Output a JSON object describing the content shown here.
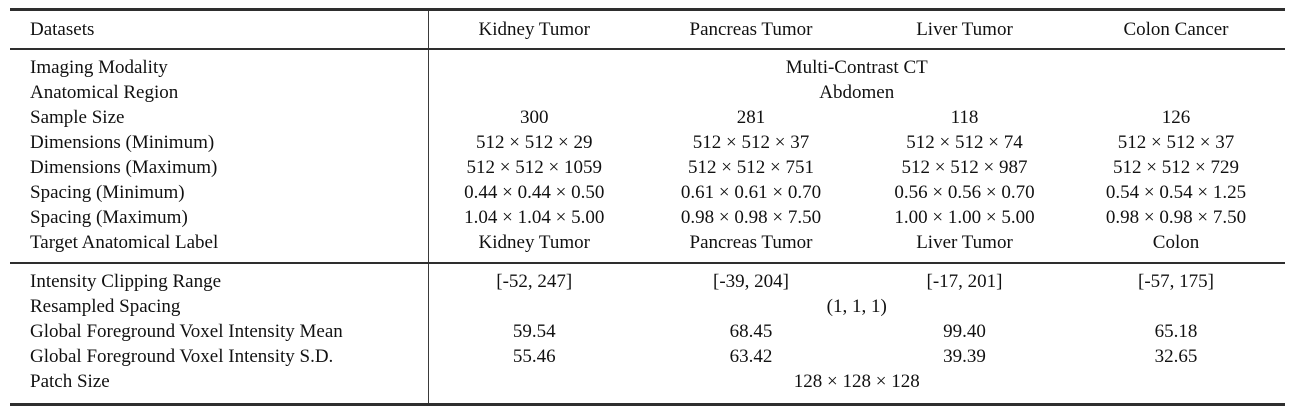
{
  "table": {
    "header": {
      "label": "Datasets",
      "columns": [
        "Kidney Tumor",
        "Pancreas Tumor",
        "Liver Tumor",
        "Colon Cancer"
      ]
    },
    "sections": [
      {
        "rows": [
          {
            "label": "Imaging Modality",
            "span": "Multi-Contrast CT"
          },
          {
            "label": "Anatomical Region",
            "span": "Abdomen"
          },
          {
            "label": "Sample Size",
            "values": [
              "300",
              "281",
              "118",
              "126"
            ]
          },
          {
            "label": "Dimensions (Minimum)",
            "values": [
              "512 × 512 × 29",
              "512 × 512 × 37",
              "512 × 512 × 74",
              "512 × 512 × 37"
            ]
          },
          {
            "label": "Dimensions (Maximum)",
            "values": [
              "512 × 512 × 1059",
              "512 × 512 × 751",
              "512 × 512 × 987",
              "512 × 512 × 729"
            ]
          },
          {
            "label": "Spacing (Minimum)",
            "values": [
              "0.44 × 0.44 × 0.50",
              "0.61 × 0.61 × 0.70",
              "0.56 × 0.56 × 0.70",
              "0.54 × 0.54 × 1.25"
            ]
          },
          {
            "label": "Spacing (Maximum)",
            "values": [
              "1.04 × 1.04 × 5.00",
              "0.98 × 0.98 × 7.50",
              "1.00 × 1.00 × 5.00",
              "0.98 × 0.98 × 7.50"
            ]
          },
          {
            "label": "Target Anatomical Label",
            "values": [
              "Kidney Tumor",
              "Pancreas Tumor",
              "Liver Tumor",
              "Colon"
            ]
          }
        ]
      },
      {
        "rows": [
          {
            "label": "Intensity Clipping Range",
            "values": [
              "[-52, 247]",
              "[-39, 204]",
              "[-17, 201]",
              "[-57, 175]"
            ]
          },
          {
            "label": "Resampled Spacing",
            "span": "(1, 1, 1)"
          },
          {
            "label": "Global Foreground Voxel Intensity Mean",
            "values": [
              "59.54",
              "68.45",
              "99.40",
              "65.18"
            ]
          },
          {
            "label": "Global Foreground Voxel Intensity S.D.",
            "values": [
              "55.46",
              "63.42",
              "39.39",
              "32.65"
            ]
          },
          {
            "label": "Patch Size",
            "span": "128 × 128 × 128"
          }
        ]
      }
    ]
  }
}
